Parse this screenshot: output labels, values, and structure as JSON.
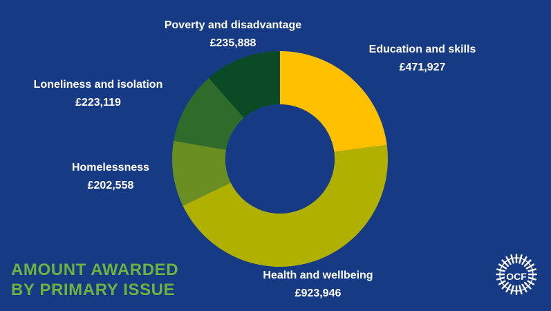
{
  "chart_data": {
    "type": "pie",
    "title": "",
    "donut": true,
    "slices": [
      {
        "label": "Education and skills",
        "value": 471927,
        "display": "£471,927",
        "color": "#ffc000"
      },
      {
        "label": "Health and wellbeing",
        "value": 923946,
        "display": "£923,946",
        "color": "#b0b000"
      },
      {
        "label": "Homelessness",
        "value": 202558,
        "display": "£202,558",
        "color": "#6b8e23"
      },
      {
        "label": "Loneliness and isolation",
        "value": 223119,
        "display": "£223,119",
        "color": "#2f6b2b"
      },
      {
        "label": "Poverty and disadvantage",
        "value": 235888,
        "display": "£235,888",
        "color": "#0a4a24"
      }
    ]
  },
  "headline": {
    "line1": "AMOUNT AWARDED",
    "line2": "BY PRIMARY ISSUE"
  },
  "logo": {
    "text": "OCF"
  },
  "colors": {
    "background": "#173a84",
    "headline": "#6db33f",
    "label": "#ffffff"
  }
}
